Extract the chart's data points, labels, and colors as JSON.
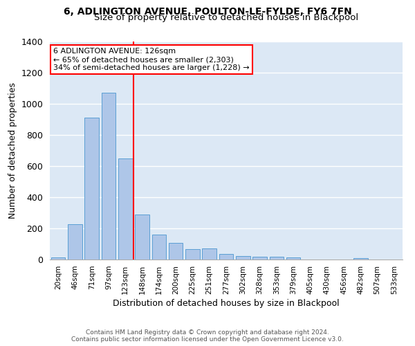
{
  "title1": "6, ADLINGTON AVENUE, POULTON-LE-FYLDE, FY6 7FN",
  "title2": "Size of property relative to detached houses in Blackpool",
  "xlabel": "Distribution of detached houses by size in Blackpool",
  "ylabel": "Number of detached properties",
  "categories": [
    "20sqm",
    "46sqm",
    "71sqm",
    "97sqm",
    "123sqm",
    "148sqm",
    "174sqm",
    "200sqm",
    "225sqm",
    "251sqm",
    "277sqm",
    "302sqm",
    "328sqm",
    "353sqm",
    "379sqm",
    "405sqm",
    "430sqm",
    "456sqm",
    "482sqm",
    "507sqm",
    "533sqm"
  ],
  "values": [
    15,
    225,
    910,
    1070,
    650,
    290,
    160,
    105,
    65,
    70,
    35,
    22,
    20,
    18,
    12,
    0,
    0,
    0,
    8,
    0,
    0
  ],
  "bar_color": "#aec6e8",
  "bar_edge_color": "#5a9fd4",
  "background_color": "#dce8f5",
  "grid_color": "#ffffff",
  "vline_color": "red",
  "annotation_title": "6 ADLINGTON AVENUE: 126sqm",
  "annotation_line1": "← 65% of detached houses are smaller (2,303)",
  "annotation_line2": "34% of semi-detached houses are larger (1,228) →",
  "annotation_box_color": "#ffffff",
  "annotation_border_color": "red",
  "ylim": [
    0,
    1400
  ],
  "yticks": [
    0,
    200,
    400,
    600,
    800,
    1000,
    1200,
    1400
  ],
  "footer1": "Contains HM Land Registry data © Crown copyright and database right 2024.",
  "footer2": "Contains public sector information licensed under the Open Government Licence v3.0."
}
